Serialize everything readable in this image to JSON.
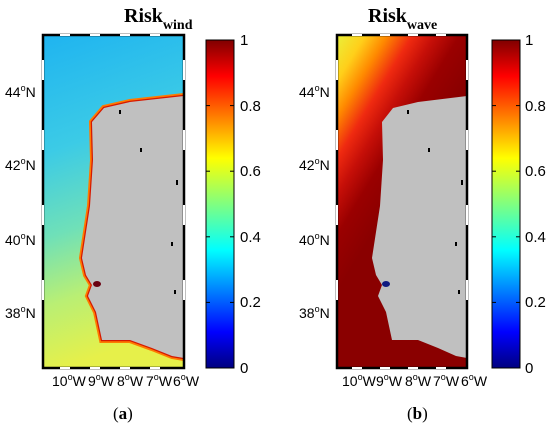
{
  "panels": [
    {
      "title_main": "Risk",
      "title_sub": "wind",
      "caption_letter": "a",
      "latitude_labels": [
        {
          "value": "44",
          "unit": "o",
          "hemi": "N"
        },
        {
          "value": "42",
          "unit": "o",
          "hemi": "N"
        },
        {
          "value": "40",
          "unit": "o",
          "hemi": "N"
        },
        {
          "value": "38",
          "unit": "o",
          "hemi": "N"
        }
      ],
      "longitude_labels": [
        {
          "value": "10",
          "unit": "o",
          "hemi": "W"
        },
        {
          "value": "9",
          "unit": "o",
          "hemi": "W"
        },
        {
          "value": "8",
          "unit": "o",
          "hemi": "W"
        },
        {
          "value": "7",
          "unit": "o",
          "hemi": "W"
        },
        {
          "value": "6",
          "unit": "o",
          "hemi": "W"
        }
      ],
      "colorbar_ticks": [
        "1",
        "0.8",
        "0.6",
        "0.4",
        "0.2",
        "0"
      ]
    },
    {
      "title_main": "Risk",
      "title_sub": "wave",
      "caption_letter": "b",
      "latitude_labels": [
        {
          "value": "44",
          "unit": "o",
          "hemi": "N"
        },
        {
          "value": "42",
          "unit": "o",
          "hemi": "N"
        },
        {
          "value": "40",
          "unit": "o",
          "hemi": "N"
        },
        {
          "value": "38",
          "unit": "o",
          "hemi": "N"
        }
      ],
      "longitude_labels": [
        {
          "value": "10",
          "unit": "o",
          "hemi": "W"
        },
        {
          "value": "9",
          "unit": "o",
          "hemi": "W"
        },
        {
          "value": "8",
          "unit": "o",
          "hemi": "W"
        },
        {
          "value": "7",
          "unit": "o",
          "hemi": "W"
        },
        {
          "value": "6",
          "unit": "o",
          "hemi": "W"
        }
      ],
      "colorbar_ticks": [
        "1",
        "0.8",
        "0.6",
        "0.4",
        "0.2",
        "0"
      ]
    }
  ],
  "colormap": [
    "#000080",
    "#0000ff",
    "#0080ff",
    "#00ffff",
    "#80ff80",
    "#ffff00",
    "#ff8000",
    "#ff0000",
    "#800000"
  ],
  "land_color": "#c0c0c0",
  "caption_open": "(",
  "caption_close": ")"
}
